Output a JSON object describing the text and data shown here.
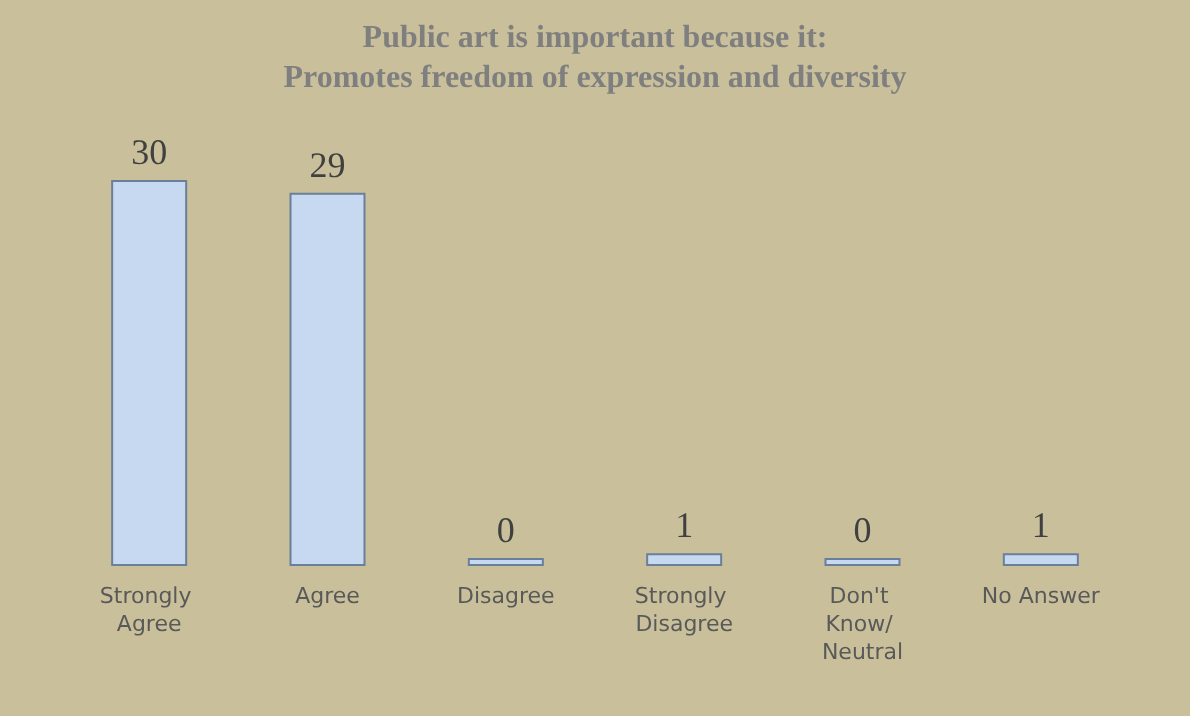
{
  "chart_data": {
    "type": "bar",
    "title": "Public art is important because it:",
    "subtitle": "Promotes freedom of expression and diversity",
    "categories": [
      "Strongly Agree",
      "Agree",
      "Disagree",
      "Strongly Disagree",
      "Don't Know/ Neutral",
      "No Answer"
    ],
    "values": [
      30,
      29,
      0,
      1,
      0,
      1
    ],
    "color": "#c6d9f1",
    "data_labels": true
  }
}
